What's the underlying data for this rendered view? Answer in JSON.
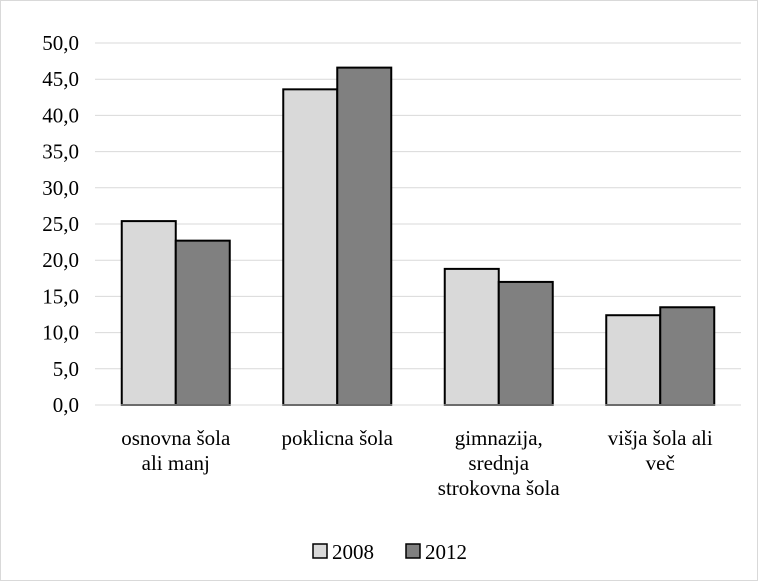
{
  "chart_data": {
    "type": "bar",
    "title": "",
    "xlabel": "",
    "ylabel": "",
    "ylim": [
      0,
      50
    ],
    "yticks": [
      "0,0",
      "5,0",
      "10,0",
      "15,0",
      "20,0",
      "25,0",
      "30,0",
      "35,0",
      "40,0",
      "45,0",
      "50,0"
    ],
    "grid": true,
    "legend_position": "bottom",
    "categories": [
      [
        "osnovna šola",
        "ali manj"
      ],
      [
        "poklicna šola"
      ],
      [
        "gimnazija,",
        "srednja",
        "strokovna šola"
      ],
      [
        "višja šola ali",
        "več"
      ]
    ],
    "series": [
      {
        "name": "2008",
        "color": "#d9d9d9",
        "values": [
          25.4,
          43.6,
          18.8,
          12.4
        ]
      },
      {
        "name": "2012",
        "color": "#808080",
        "values": [
          22.7,
          46.6,
          17.0,
          13.5
        ]
      }
    ]
  }
}
